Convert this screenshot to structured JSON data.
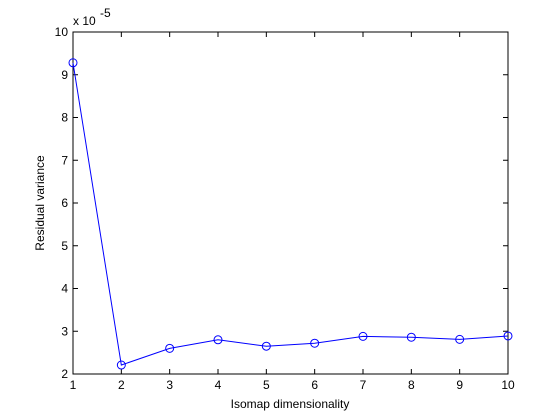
{
  "chart_data": {
    "type": "line",
    "xlabel": "Isomap dimensionality",
    "ylabel": "Residual variance",
    "x": [
      1,
      2,
      3,
      4,
      5,
      6,
      7,
      8,
      9,
      10
    ],
    "series": [
      {
        "values": [
          9.28,
          2.21,
          2.6,
          2.8,
          2.65,
          2.72,
          2.88,
          2.86,
          2.81,
          2.89
        ],
        "color": "#0000ff",
        "marker": "circle"
      }
    ],
    "xlim": [
      1,
      10
    ],
    "ylim": [
      2,
      10
    ],
    "xticks": [
      "1",
      "2",
      "3",
      "4",
      "5",
      "6",
      "7",
      "8",
      "9",
      "10"
    ],
    "yticks": [
      "2",
      "3",
      "4",
      "5",
      "6",
      "7",
      "8",
      "9",
      "10"
    ],
    "y_exponent": {
      "base": "x 10",
      "power": "-5"
    },
    "grid": false,
    "legend": false
  }
}
